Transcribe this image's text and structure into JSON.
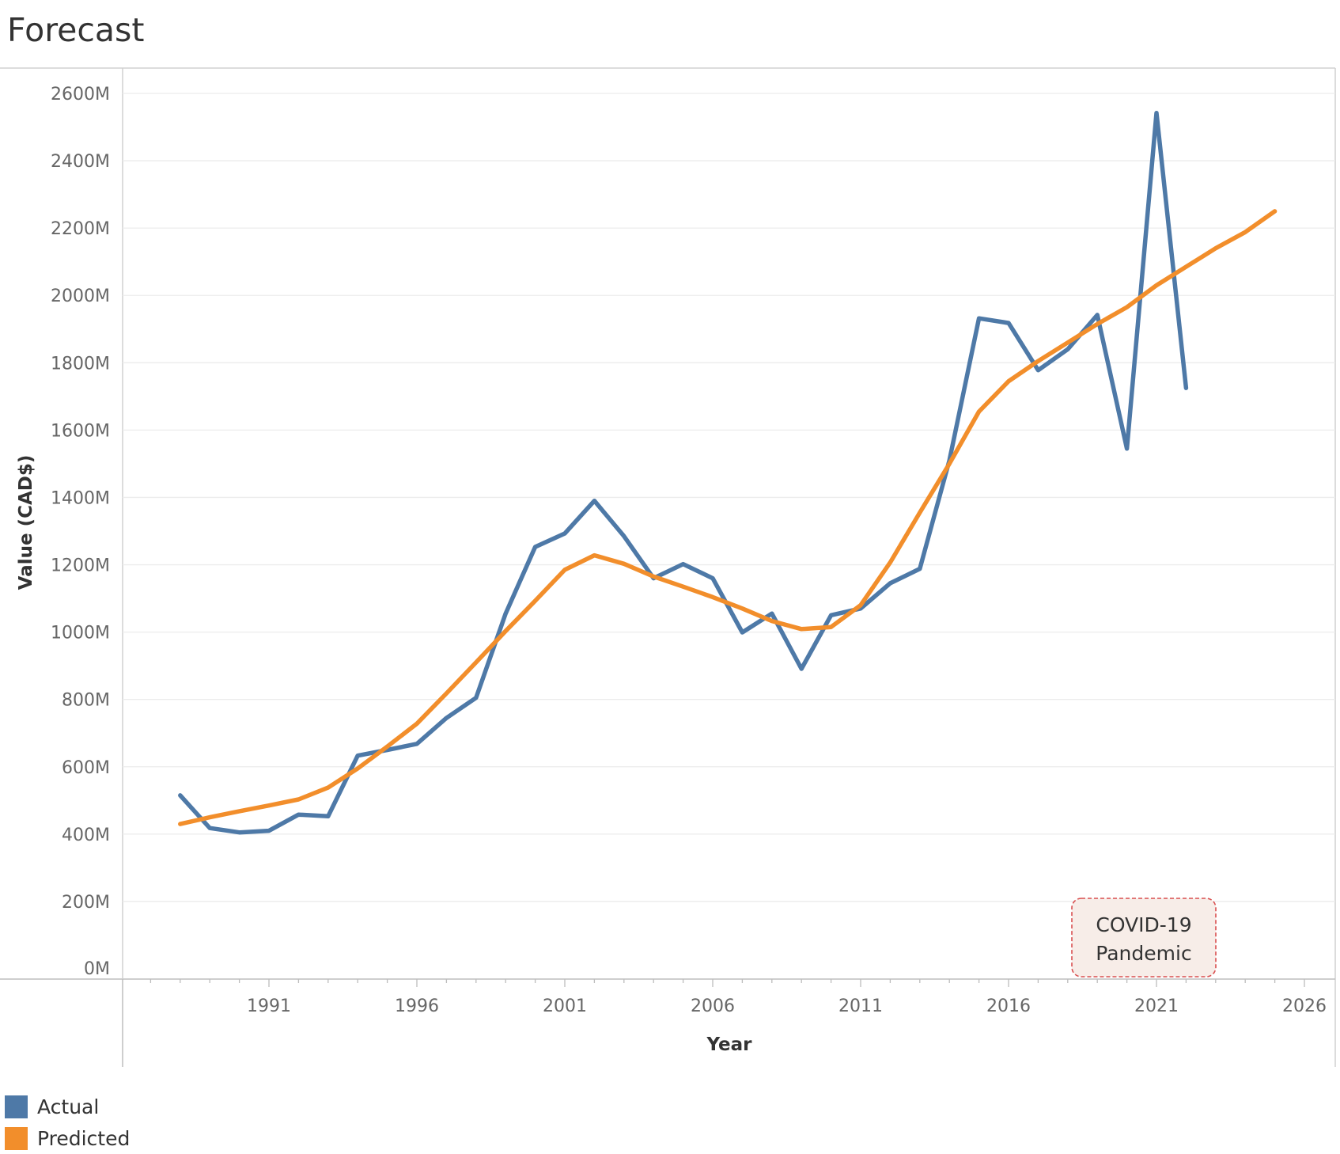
{
  "title": "Forecast",
  "chart_data": {
    "type": "line",
    "xlabel": "Year",
    "ylabel": "Value (CAD$)",
    "xlim": [
      1986,
      2026
    ],
    "ylim": [
      0,
      2600
    ],
    "x_ticks": [
      "1991",
      "1996",
      "2001",
      "2006",
      "2011",
      "2016",
      "2021",
      "2026"
    ],
    "y_ticks": [
      "0M",
      "200M",
      "400M",
      "600M",
      "800M",
      "1000M",
      "1200M",
      "1400M",
      "1600M",
      "1800M",
      "2000M",
      "2200M",
      "2400M",
      "2600M"
    ],
    "grid": true,
    "legend_position": "bottom-left",
    "series": [
      {
        "name": "Actual",
        "color": "#4e79a7",
        "x": [
          1988,
          1989,
          1990,
          1991,
          1992,
          1993,
          1994,
          1995,
          1996,
          1997,
          1998,
          1999,
          2000,
          2001,
          2002,
          2003,
          2004,
          2005,
          2006,
          2007,
          2008,
          2009,
          2010,
          2011,
          2012,
          2013,
          2014,
          2015,
          2016,
          2017,
          2018,
          2019,
          2020,
          2021,
          2022
        ],
        "y": [
          515,
          418,
          405,
          410,
          458,
          453,
          633,
          650,
          668,
          745,
          805,
          1055,
          1253,
          1293,
          1390,
          1285,
          1160,
          1202,
          1160,
          999,
          1055,
          891,
          1050,
          1070,
          1145,
          1188,
          1510,
          1932,
          1918,
          1778,
          1840,
          1942,
          1545,
          2542,
          1725
        ]
      },
      {
        "name": "Predicted",
        "color": "#f28e2b",
        "x": [
          1988,
          1989,
          1990,
          1991,
          1992,
          1993,
          1994,
          1995,
          1996,
          1997,
          1998,
          1999,
          2000,
          2001,
          2002,
          2003,
          2004,
          2005,
          2006,
          2007,
          2008,
          2009,
          2010,
          2011,
          2012,
          2013,
          2014,
          2015,
          2016,
          2017,
          2018,
          2019,
          2020,
          2021,
          2022,
          2023,
          2024,
          2025
        ],
        "y": [
          430,
          450,
          468,
          485,
          503,
          538,
          595,
          660,
          728,
          818,
          910,
          1003,
          1093,
          1185,
          1228,
          1203,
          1165,
          1135,
          1104,
          1070,
          1033,
          1009,
          1015,
          1080,
          1207,
          1355,
          1500,
          1655,
          1745,
          1805,
          1860,
          1915,
          1965,
          2030,
          2085,
          2140,
          2188,
          2250
        ]
      }
    ],
    "annotation": {
      "line1": "COVID-19",
      "line2": "Pandemic",
      "fill": "#f7ede8",
      "border": "#d94f4f"
    }
  }
}
